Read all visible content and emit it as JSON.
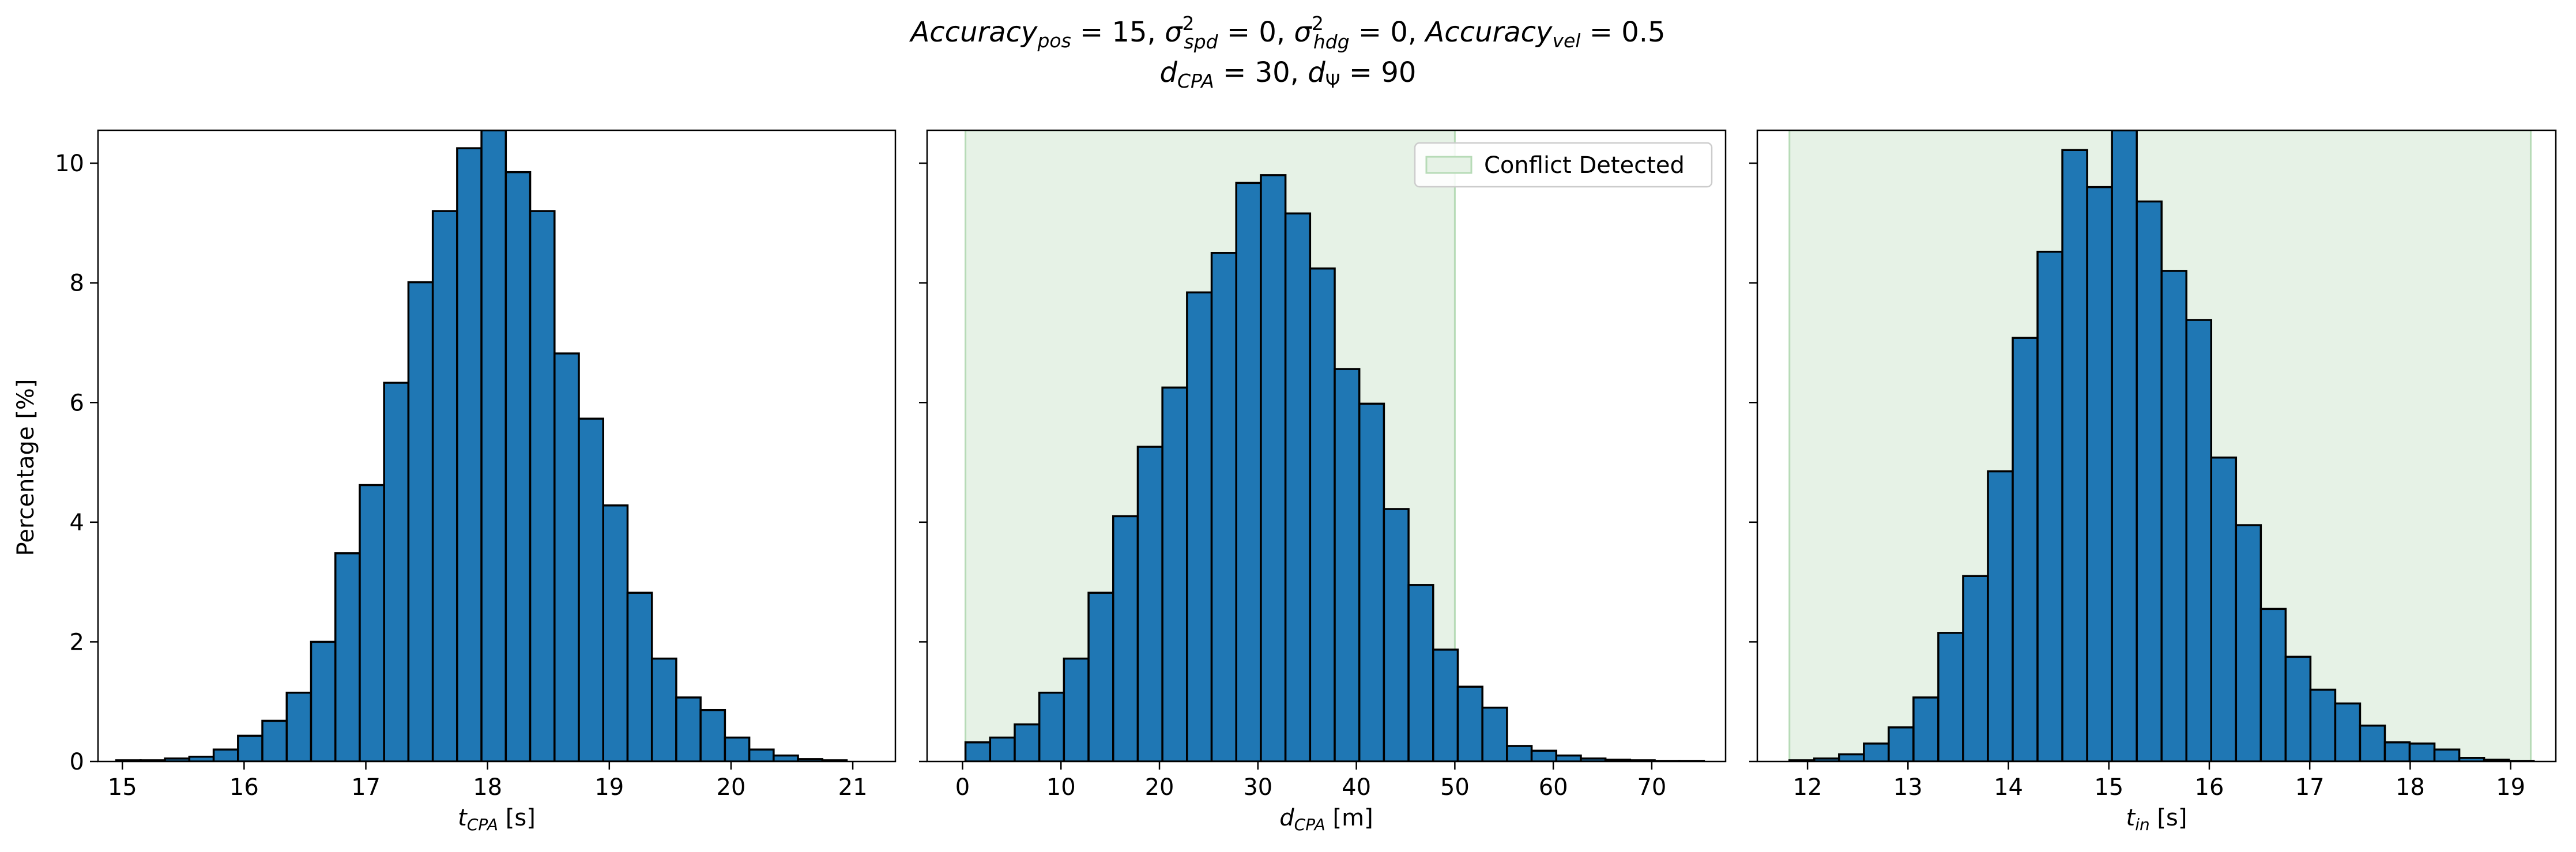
{
  "figure": {
    "title_line1": {
      "p1": "Accuracy",
      "p1_sub": "pos",
      "p2": " = 15, ",
      "p3": "σ",
      "p3_sup": "2",
      "p3_sub": "spd",
      "p4": " = 0, ",
      "p5": "σ",
      "p5_sup": "2",
      "p5_sub": "hdg",
      "p6": " = 0, ",
      "p7": "Accuracy",
      "p7_sub": "vel",
      "p8": " = 0.5"
    },
    "title_line2": {
      "p1": "d",
      "p1_sub": "CPA",
      "p2": " = 30, ",
      "p3": "d",
      "p3_sub": "Ψ",
      "p4": " = 90"
    },
    "ylabel": "Percentage [%]"
  },
  "colors": {
    "bar_fill": "#1f77b4",
    "bar_edge": "#000000",
    "region_fill": "#e6f2e6",
    "region_edge": "#b7dbb7"
  },
  "chart_data": [
    {
      "type": "bar",
      "subtype": "histogram",
      "xlabel": {
        "main": "t",
        "sub": "CPA",
        "unit": " [s]"
      },
      "xlim": [
        14.8,
        21.35
      ],
      "ylim": [
        0,
        10.55
      ],
      "xticks": [
        15,
        16,
        17,
        18,
        19,
        20,
        21
      ],
      "yticks": [
        0,
        2,
        4,
        6,
        8,
        10
      ],
      "bin_start": 14.95,
      "bin_width": 0.2,
      "values": [
        0.02,
        0.02,
        0.05,
        0.08,
        0.2,
        0.43,
        0.68,
        1.15,
        2.0,
        3.48,
        4.62,
        6.33,
        8.01,
        9.2,
        10.25,
        10.55,
        9.85,
        9.2,
        6.82,
        5.73,
        4.28,
        2.82,
        1.72,
        1.07,
        0.86,
        0.4,
        0.2,
        0.1,
        0.04,
        0.02
      ],
      "legend": null
    },
    {
      "type": "bar",
      "subtype": "histogram",
      "xlabel": {
        "main": "d",
        "sub": "CPA",
        "unit": " [m]"
      },
      "xlim": [
        -3.6,
        77.5
      ],
      "ylim": [
        0,
        10.55
      ],
      "xticks": [
        0,
        10,
        20,
        30,
        40,
        50,
        60,
        70
      ],
      "yticks": [
        0,
        2,
        4,
        6,
        8,
        10
      ],
      "bin_start": 0.3,
      "bin_width": 2.5,
      "values": [
        0.32,
        0.4,
        0.62,
        1.15,
        1.72,
        2.82,
        4.1,
        5.26,
        6.25,
        7.84,
        8.5,
        9.67,
        9.8,
        9.16,
        8.24,
        6.56,
        5.98,
        4.22,
        2.95,
        1.87,
        1.25,
        0.9,
        0.26,
        0.18,
        0.1,
        0.05,
        0.03,
        0.02,
        0.01,
        0.01
      ],
      "region": [
        0.3,
        50.0
      ],
      "legend": {
        "label": "Conflict Detected",
        "loc": "upper right"
      }
    },
    {
      "type": "bar",
      "subtype": "histogram",
      "xlabel": {
        "main": "t",
        "sub": "in",
        "unit": " [s]"
      },
      "xlim": [
        11.5,
        19.45
      ],
      "ylim": [
        0,
        10.55
      ],
      "xticks": [
        12,
        13,
        14,
        15,
        16,
        17,
        18,
        19
      ],
      "yticks": [
        0,
        2,
        4,
        6,
        8,
        10
      ],
      "bin_start": 11.82,
      "bin_width": 0.247,
      "values": [
        0.02,
        0.05,
        0.12,
        0.3,
        0.57,
        1.07,
        2.15,
        3.1,
        4.85,
        7.08,
        8.52,
        10.22,
        9.6,
        10.55,
        9.36,
        8.2,
        7.38,
        5.08,
        3.95,
        2.55,
        1.75,
        1.2,
        0.97,
        0.6,
        0.32,
        0.3,
        0.2,
        0.06,
        0.03,
        0.01
      ],
      "region": [
        11.82,
        19.2
      ],
      "legend": null
    }
  ]
}
